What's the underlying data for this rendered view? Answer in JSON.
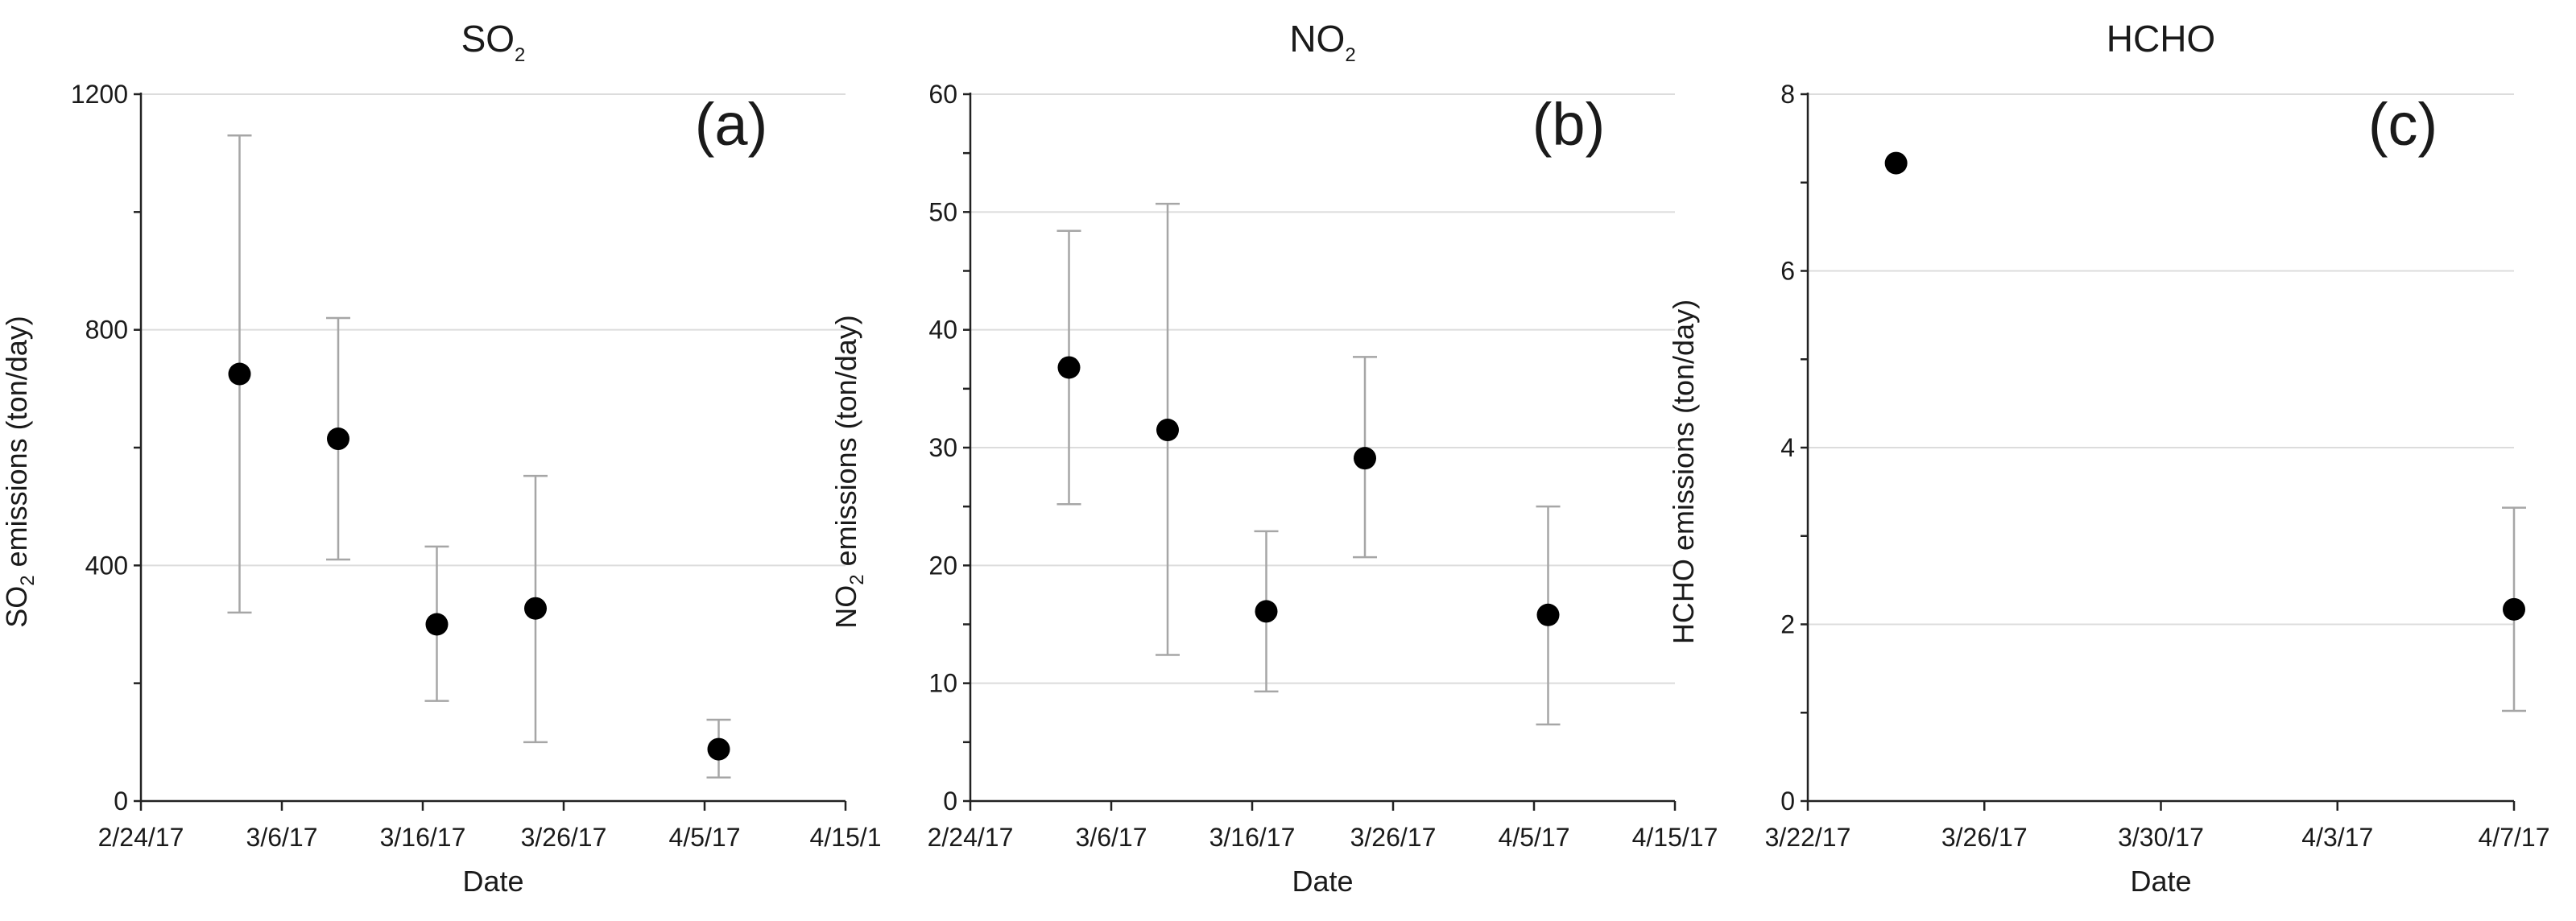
{
  "chart_data": [
    {
      "type": "scatter",
      "title": "SO",
      "title_sub": "2",
      "panel_label": "(a)",
      "xlabel": "Date",
      "ylabel": "SO",
      "ylabel_sub": "2",
      "ylabel_rest": " emissions (ton/day)",
      "x_tick_labels": [
        "2/24/17",
        "3/6/17",
        "3/16/17",
        "3/26/17",
        "4/5/17",
        "4/15/1"
      ],
      "x_tick_days": [
        0,
        10,
        20,
        30,
        40,
        50
      ],
      "xlim_days": [
        0,
        50
      ],
      "ylim": [
        0,
        1200
      ],
      "y_ticks": [
        0,
        400,
        800,
        1200
      ],
      "y_minor_step": 200,
      "grid": true,
      "series": [
        {
          "name": "SO2 emissions",
          "points": [
            {
              "date": "3/3/17",
              "day": 7,
              "value": 725,
              "lower": 320,
              "upper": 1130
            },
            {
              "date": "3/10/17",
              "day": 14,
              "value": 615,
              "lower": 410,
              "upper": 820
            },
            {
              "date": "3/17/17",
              "day": 21,
              "value": 300,
              "lower": 170,
              "upper": 432
            },
            {
              "date": "3/24/17",
              "day": 28,
              "value": 327,
              "lower": 100,
              "upper": 552
            },
            {
              "date": "4/6/17",
              "day": 41,
              "value": 88,
              "lower": 40,
              "upper": 138
            }
          ]
        }
      ]
    },
    {
      "type": "scatter",
      "title": "NO",
      "title_sub": "2",
      "panel_label": "(b)",
      "xlabel": "Date",
      "ylabel": "NO",
      "ylabel_sub": "2",
      "ylabel_rest": " emissions (ton/day)",
      "x_tick_labels": [
        "2/24/17",
        "3/6/17",
        "3/16/17",
        "3/26/17",
        "4/5/17",
        "4/15/17"
      ],
      "x_tick_days": [
        0,
        10,
        20,
        30,
        40,
        50
      ],
      "xlim_days": [
        0,
        50
      ],
      "ylim": [
        0,
        60
      ],
      "y_ticks": [
        0,
        10,
        20,
        30,
        40,
        50,
        60
      ],
      "y_minor_step": 5,
      "grid": true,
      "series": [
        {
          "name": "NO2 emissions",
          "points": [
            {
              "date": "3/3/17",
              "day": 7,
              "value": 36.8,
              "lower": 25.2,
              "upper": 48.4
            },
            {
              "date": "3/10/17",
              "day": 14,
              "value": 31.5,
              "lower": 12.4,
              "upper": 50.7
            },
            {
              "date": "3/17/17",
              "day": 21,
              "value": 16.1,
              "lower": 9.3,
              "upper": 22.9
            },
            {
              "date": "3/24/17",
              "day": 28,
              "value": 29.1,
              "lower": 20.7,
              "upper": 37.7
            },
            {
              "date": "4/6/17",
              "day": 41,
              "value": 15.8,
              "lower": 6.5,
              "upper": 25.0
            }
          ]
        }
      ]
    },
    {
      "type": "scatter",
      "title": "HCHO",
      "title_sub": "",
      "panel_label": "(c)",
      "xlabel": "Date",
      "ylabel": "HCHO",
      "ylabel_sub": "",
      "ylabel_rest": " emissions (ton/day)",
      "x_tick_labels": [
        "3/22/17",
        "3/26/17",
        "3/30/17",
        "4/3/17",
        "4/7/17"
      ],
      "x_tick_days": [
        0,
        4,
        8,
        12,
        16
      ],
      "xlim_days": [
        0,
        16
      ],
      "ylim": [
        0,
        8
      ],
      "y_ticks": [
        0,
        2,
        4,
        6,
        8
      ],
      "y_minor_step": 1,
      "grid": true,
      "series": [
        {
          "name": "HCHO emissions",
          "points": [
            {
              "date": "3/24/17",
              "day": 2,
              "value": 7.22,
              "lower": null,
              "upper": null
            },
            {
              "date": "4/7/17",
              "day": 16,
              "value": 2.17,
              "lower": 1.02,
              "upper": 3.32
            }
          ]
        }
      ]
    }
  ]
}
